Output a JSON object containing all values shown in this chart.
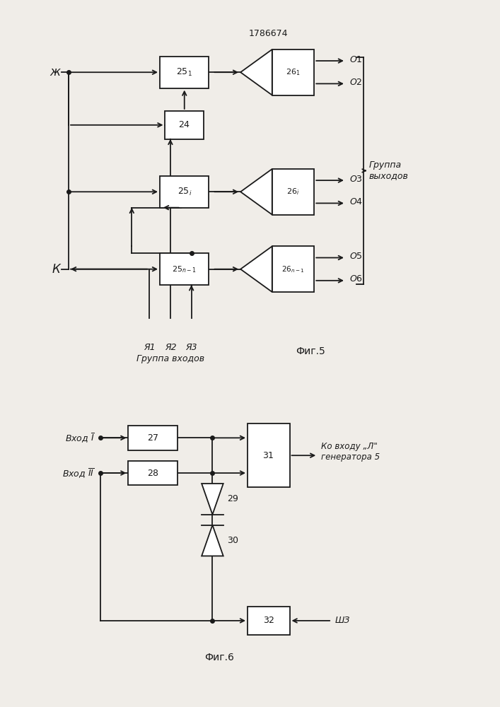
{
  "fig_width": 7.07,
  "fig_height": 10.0,
  "bg_color": "#f0ede8",
  "line_color": "#1a1a1a",
  "patent_number": "1786674",
  "fig5_label": "Фиг.5",
  "fig6_label": "Фиг.6",
  "group_outputs_label": "Группа\nвыходов",
  "group_inputs_label": "Группа входов"
}
